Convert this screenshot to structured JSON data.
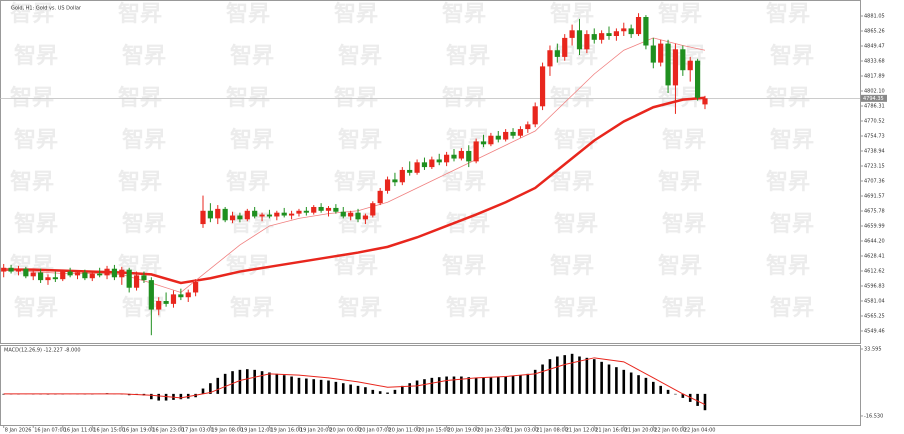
{
  "chart_data": [
    {
      "type": "candlestick",
      "title": "Gold, H1: Gold vs. US Dollar",
      "watermark": "智昇",
      "up_color": "#e8261d",
      "down_color": "#1f8f1f",
      "xlim": [
        -0.5,
        116
      ],
      "ylim": [
        4536.8,
        4897.9
      ],
      "yticks": [
        4881.05,
        4865.26,
        4849.47,
        4833.68,
        4817.89,
        {
          "value": 4802.1,
          "label": "4802.10"
        },
        4786.31,
        4770.52,
        4754.73,
        4738.94,
        4723.15,
        4707.36,
        4691.57,
        4675.78,
        4659.99,
        {
          "value": 4644.2,
          "label": "4644.20"
        },
        4628.41,
        4612.62,
        4596.83,
        4581.04,
        4565.25,
        4549.46
      ],
      "last_price": 4794.35,
      "xticks": [
        {
          "value": 0,
          "label": "8 Jan 2026"
        },
        {
          "value": 4,
          "label": "16 Jan 07:00"
        },
        {
          "value": 8,
          "label": "16 Jan 11:00"
        },
        {
          "value": 12,
          "label": "16 Jan 15:00"
        },
        {
          "value": 16,
          "label": "16 Jan 19:00"
        },
        {
          "value": 20,
          "label": "16 Jan 23:00"
        },
        {
          "value": 24,
          "label": "17 Jan 03:00"
        },
        {
          "value": 28,
          "label": "19 Jan 08:00"
        },
        {
          "value": 32,
          "label": "19 Jan 12:00"
        },
        {
          "value": 36,
          "label": "19 Jan 16:00"
        },
        {
          "value": 40,
          "label": "19 Jan 20:00"
        },
        {
          "value": 44,
          "label": "20 Jan 00:00"
        },
        {
          "value": 48,
          "label": "20 Jan 07:00"
        },
        {
          "value": 52,
          "label": "20 Jan 11:00"
        },
        {
          "value": 56,
          "label": "20 Jan 15:00"
        },
        {
          "value": 60,
          "label": "20 Jan 19:00"
        },
        {
          "value": 64,
          "label": "20 Jan 23:00"
        },
        {
          "value": 68,
          "label": "21 Jan 03:00"
        },
        {
          "value": 72,
          "label": "21 Jan 08:00"
        },
        {
          "value": 76,
          "label": "21 Jan 12:00"
        },
        {
          "value": 80,
          "label": "21 Jan 16:00"
        },
        {
          "value": 84,
          "label": "21 Jan 20:00"
        },
        {
          "value": 88,
          "label": "22 Jan 00:00"
        },
        {
          "value": 92,
          "label": "22 Jan 04:00"
        }
      ],
      "candles": [
        [
          4612,
          4620,
          4606,
          4616
        ],
        [
          4616,
          4619,
          4610,
          4612
        ],
        [
          4612,
          4618,
          4608,
          4615
        ],
        [
          4615,
          4617,
          4605,
          4607
        ],
        [
          4607,
          4614,
          4603,
          4611
        ],
        [
          4611,
          4615,
          4600,
          4603
        ],
        [
          4603,
          4609,
          4598,
          4606
        ],
        [
          4606,
          4612,
          4601,
          4604
        ],
        [
          4604,
          4614,
          4602,
          4612
        ],
        [
          4612,
          4616,
          4606,
          4608
        ],
        [
          4608,
          4613,
          4604,
          4611
        ],
        [
          4611,
          4614,
          4603,
          4605
        ],
        [
          4605,
          4612,
          4602,
          4610
        ],
        [
          4610,
          4616,
          4606,
          4608
        ],
        [
          4608,
          4618,
          4604,
          4615
        ],
        [
          4615,
          4619,
          4603,
          4606
        ],
        [
          4606,
          4617,
          4598,
          4614
        ],
        [
          4614,
          4616,
          4590,
          4595
        ],
        [
          4595,
          4612,
          4592,
          4608
        ],
        [
          4608,
          4612,
          4600,
          4603
        ],
        [
          4603,
          4606,
          4545,
          4572
        ],
        [
          4572,
          4585,
          4566,
          4581
        ],
        [
          4581,
          4590,
          4575,
          4578
        ],
        [
          4578,
          4592,
          4574,
          4588
        ],
        [
          4588,
          4594,
          4582,
          4585
        ],
        [
          4585,
          4593,
          4580,
          4590
        ],
        [
          4590,
          4604,
          4586,
          4601
        ],
        [
          4662,
          4692,
          4658,
          4676
        ],
        [
          4676,
          4684,
          4664,
          4668
        ],
        [
          4668,
          4682,
          4662,
          4678
        ],
        [
          4678,
          4680,
          4664,
          4666
        ],
        [
          4666,
          4675,
          4663,
          4671
        ],
        [
          4671,
          4674,
          4664,
          4667
        ],
        [
          4667,
          4678,
          4665,
          4676
        ],
        [
          4676,
          4680,
          4668,
          4670
        ],
        [
          4670,
          4674,
          4665,
          4672
        ],
        [
          4672,
          4677,
          4668,
          4670
        ],
        [
          4670,
          4676,
          4666,
          4674
        ],
        [
          4674,
          4679,
          4669,
          4671
        ],
        [
          4671,
          4676,
          4667,
          4673
        ],
        [
          4673,
          4678,
          4670,
          4676
        ],
        [
          4676,
          4680,
          4671,
          4674
        ],
        [
          4674,
          4682,
          4672,
          4680
        ],
        [
          4680,
          4684,
          4674,
          4676
        ],
        [
          4676,
          4681,
          4670,
          4679
        ],
        [
          4679,
          4683,
          4673,
          4675
        ],
        [
          4675,
          4680,
          4668,
          4670
        ],
        [
          4670,
          4676,
          4666,
          4674
        ],
        [
          4674,
          4678,
          4664,
          4667
        ],
        [
          4667,
          4673,
          4662,
          4671
        ],
        [
          4671,
          4686,
          4669,
          4684
        ],
        [
          4684,
          4700,
          4682,
          4697
        ],
        [
          4697,
          4712,
          4694,
          4709
        ],
        [
          4709,
          4716,
          4702,
          4706
        ],
        [
          4706,
          4722,
          4703,
          4719
        ],
        [
          4719,
          4728,
          4713,
          4716
        ],
        [
          4716,
          4730,
          4714,
          4727
        ],
        [
          4727,
          4732,
          4719,
          4722
        ],
        [
          4722,
          4733,
          4720,
          4730
        ],
        [
          4730,
          4736,
          4724,
          4727
        ],
        [
          4727,
          4738,
          4723,
          4735
        ],
        [
          4735,
          4741,
          4728,
          4731
        ],
        [
          4731,
          4742,
          4729,
          4739
        ],
        [
          4739,
          4745,
          4722,
          4728
        ],
        [
          4728,
          4752,
          4726,
          4749
        ],
        [
          4749,
          4756,
          4743,
          4746
        ],
        [
          4746,
          4758,
          4744,
          4755
        ],
        [
          4755,
          4760,
          4748,
          4751
        ],
        [
          4751,
          4762,
          4749,
          4759
        ],
        [
          4759,
          4763,
          4752,
          4755
        ],
        [
          4755,
          4765,
          4753,
          4762
        ],
        [
          4762,
          4770,
          4758,
          4767
        ],
        [
          4767,
          4790,
          4764,
          4786
        ],
        [
          4786,
          4832,
          4782,
          4828
        ],
        [
          4828,
          4850,
          4818,
          4845
        ],
        [
          4845,
          4852,
          4832,
          4838
        ],
        [
          4838,
          4862,
          4834,
          4858
        ],
        [
          4858,
          4872,
          4850,
          4866
        ],
        [
          4866,
          4878,
          4840,
          4846
        ],
        [
          4846,
          4866,
          4842,
          4862
        ],
        [
          4862,
          4868,
          4852,
          4856
        ],
        [
          4856,
          4866,
          4852,
          4863
        ],
        [
          4863,
          4870,
          4856,
          4860
        ],
        [
          4860,
          4868,
          4855,
          4865
        ],
        [
          4865,
          4874,
          4860,
          4868
        ],
        [
          4868,
          4872,
          4858,
          4862
        ],
        [
          4862,
          4884,
          4860,
          4880
        ],
        [
          4880,
          4882,
          4846,
          4850
        ],
        [
          4850,
          4858,
          4826,
          4832
        ],
        [
          4832,
          4856,
          4828,
          4852
        ],
        [
          4852,
          4856,
          4800,
          4808
        ],
        [
          4808,
          4852,
          4778,
          4846
        ],
        [
          4846,
          4850,
          4818,
          4824
        ],
        [
          4824,
          4838,
          4812,
          4834
        ],
        [
          4834,
          4836,
          4792,
          4795
        ],
        [
          4788,
          4797,
          4783,
          4794.35
        ]
      ],
      "series": [
        {
          "color": "#e8261d",
          "width": 2.5,
          "x": [
            0,
            4,
            8,
            12,
            16,
            20,
            24,
            28,
            32,
            36,
            40,
            44,
            48,
            52,
            56,
            60,
            64,
            68,
            72,
            76,
            80,
            84,
            88,
            92,
            95
          ],
          "values": [
            4614,
            4614,
            4613,
            4612,
            4611,
            4609,
            4600,
            4605,
            4612,
            4617,
            4622,
            4627,
            4632,
            4638,
            4648,
            4660,
            4672,
            4685,
            4700,
            4725,
            4750,
            4770,
            4785,
            4793,
            4795
          ]
        },
        {
          "color": "#f08080",
          "width": 0.8,
          "x": [
            0,
            4,
            8,
            12,
            16,
            20,
            24,
            28,
            32,
            36,
            40,
            44,
            48,
            52,
            56,
            60,
            64,
            68,
            72,
            76,
            80,
            84,
            88,
            92,
            95
          ],
          "values": [
            4614,
            4612,
            4610,
            4610,
            4609,
            4600,
            4590,
            4615,
            4640,
            4660,
            4668,
            4673,
            4676,
            4685,
            4700,
            4715,
            4730,
            4745,
            4760,
            4790,
            4820,
            4845,
            4858,
            4850,
            4845
          ]
        }
      ]
    },
    {
      "type": "macd",
      "title": "MACD(12,26,9) -12.227 -8.000",
      "xlim": [
        -0.5,
        116
      ],
      "ylim": [
        -23.3,
        36.6
      ],
      "yticks": [
        33.595,
        {
          "value": -16.53,
          "label": "-16.530"
        }
      ],
      "hist_color": "#000000",
      "values": [
        -0.5,
        -0.3,
        0,
        0.2,
        0,
        -0.3,
        -0.5,
        -0.4,
        0,
        0.2,
        0.1,
        -0.2,
        0,
        0.3,
        0.5,
        0.2,
        0,
        -1,
        -0.8,
        -1.2,
        -4,
        -5,
        -5,
        -4.5,
        -4,
        -3.5,
        -2.5,
        4,
        8,
        12,
        15,
        17,
        18,
        18.5,
        18,
        17,
        16,
        15,
        14,
        13,
        12,
        11.5,
        11,
        10.5,
        10,
        9,
        8,
        7,
        6,
        5,
        3,
        2,
        1,
        3,
        6,
        8,
        10,
        11,
        12,
        12.5,
        13,
        13,
        13,
        12.5,
        12,
        12,
        12.5,
        13,
        13,
        13.5,
        14,
        15,
        18,
        22,
        26,
        28,
        29,
        30,
        28,
        27,
        26,
        24,
        22,
        20,
        18,
        16,
        14,
        12,
        9,
        6,
        3,
        0,
        -3,
        -6,
        -9,
        -12.227
      ],
      "signal": {
        "color": "#e8261d",
        "x": [
          0,
          4,
          8,
          12,
          16,
          20,
          24,
          28,
          32,
          36,
          40,
          44,
          48,
          52,
          56,
          60,
          64,
          68,
          72,
          76,
          80,
          84,
          88,
          92,
          95
        ],
        "values": [
          0,
          0,
          0,
          0,
          0,
          -1,
          -3,
          1,
          10,
          15,
          14,
          12,
          9,
          5,
          6,
          10,
          12,
          13,
          15,
          22,
          27,
          24,
          12,
          0,
          -8
        ]
      }
    }
  ]
}
